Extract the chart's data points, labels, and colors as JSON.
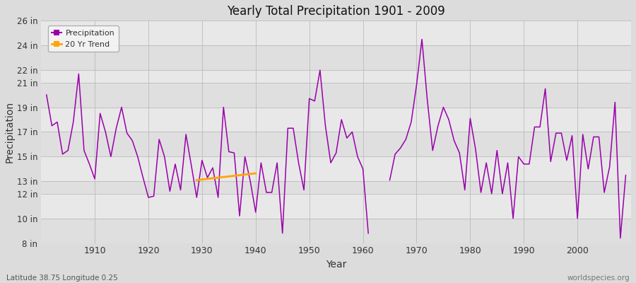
{
  "title": "Yearly Total Precipitation 1901 - 2009",
  "xlabel": "Year",
  "ylabel": "Precipitation",
  "lat_lon_label": "Latitude 38.75 Longitude 0.25",
  "watermark": "worldspecies.org",
  "years": [
    1901,
    1902,
    1903,
    1904,
    1905,
    1906,
    1907,
    1908,
    1909,
    1910,
    1911,
    1912,
    1913,
    1914,
    1915,
    1916,
    1917,
    1918,
    1919,
    1920,
    1921,
    1922,
    1923,
    1924,
    1925,
    1926,
    1927,
    1928,
    1929,
    1930,
    1931,
    1932,
    1933,
    1934,
    1935,
    1936,
    1937,
    1938,
    1939,
    1940,
    1941,
    1942,
    1943,
    1944,
    1945,
    1946,
    1947,
    1948,
    1949,
    1950,
    1951,
    1952,
    1953,
    1954,
    1955,
    1956,
    1957,
    1958,
    1959,
    1960,
    1961,
    1965,
    1966,
    1967,
    1968,
    1969,
    1970,
    1971,
    1972,
    1973,
    1974,
    1975,
    1976,
    1977,
    1978,
    1979,
    1980,
    1981,
    1982,
    1983,
    1984,
    1985,
    1986,
    1987,
    1988,
    1989,
    1990,
    1991,
    1992,
    1993,
    1994,
    1995,
    1996,
    1997,
    1998,
    1999,
    2000,
    2001,
    2002,
    2003,
    2004,
    2005,
    2006,
    2007,
    2008,
    2009
  ],
  "precip_in": [
    20.0,
    17.5,
    17.8,
    15.2,
    15.5,
    17.8,
    21.7,
    15.5,
    14.4,
    13.2,
    18.5,
    17.0,
    15.0,
    17.3,
    19.0,
    16.9,
    16.3,
    15.0,
    13.3,
    11.7,
    11.8,
    16.4,
    15.0,
    12.2,
    14.4,
    12.3,
    16.8,
    14.3,
    11.7,
    14.7,
    13.3,
    14.1,
    11.7,
    19.0,
    15.4,
    15.3,
    10.2,
    15.0,
    13.0,
    10.5,
    14.5,
    12.1,
    12.1,
    14.5,
    8.8,
    17.3,
    17.3,
    14.5,
    12.3,
    19.7,
    19.5,
    22.0,
    17.5,
    14.5,
    15.3,
    18.0,
    16.5,
    17.0,
    15.0,
    14.0,
    8.8,
    13.1,
    15.2,
    15.7,
    16.4,
    17.8,
    20.8,
    24.5,
    19.6,
    15.5,
    17.5,
    19.0,
    18.0,
    16.3,
    15.3,
    12.3,
    18.1,
    15.6,
    12.1,
    14.5,
    12.0,
    15.5,
    12.0,
    14.5,
    10.0,
    15.0,
    14.4,
    14.4,
    17.4,
    17.4,
    20.5,
    14.6,
    16.9,
    16.9,
    14.7,
    16.7,
    10.0,
    16.8,
    14.0,
    16.6,
    16.6,
    12.1,
    14.2,
    19.4,
    8.4,
    13.5
  ],
  "trend_years": [
    1929,
    1930,
    1931,
    1932,
    1933,
    1934,
    1935,
    1936,
    1937,
    1938,
    1939,
    1940
  ],
  "trend_values": [
    13.1,
    13.15,
    13.2,
    13.25,
    13.3,
    13.35,
    13.4,
    13.45,
    13.5,
    13.55,
    13.6,
    13.65
  ],
  "line_color": "#9900aa",
  "trend_color": "#FFA500",
  "bg_color": "#dcdcdc",
  "plot_bg_color": "#e8e8e8",
  "ylim_in": [
    8,
    26
  ],
  "yticks_in": [
    8,
    10,
    12,
    13,
    15,
    17,
    19,
    21,
    22,
    24,
    26
  ],
  "xticks": [
    1910,
    1920,
    1930,
    1940,
    1950,
    1960,
    1970,
    1980,
    1990,
    2000
  ],
  "figsize": [
    9.0,
    4.0
  ],
  "dpi": 100
}
